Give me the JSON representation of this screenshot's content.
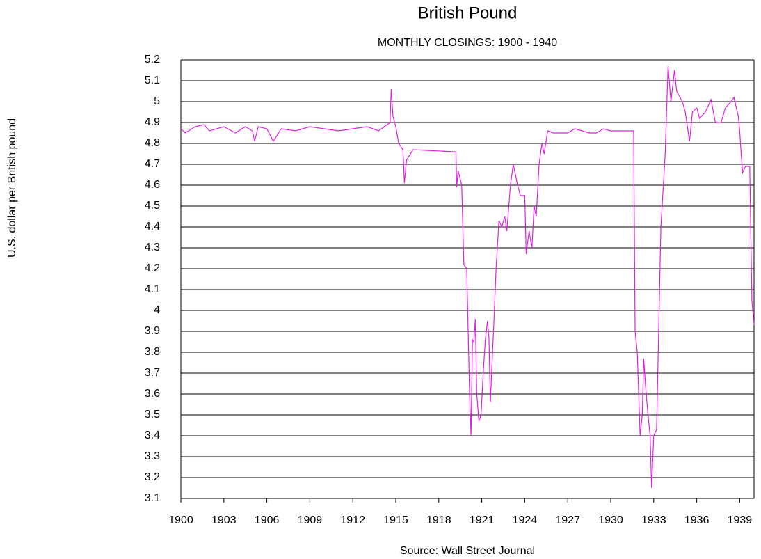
{
  "chart_data": {
    "type": "line",
    "title": "British Pound",
    "subtitle": "MONTHLY CLOSINGS: 1900 - 1940",
    "y_label": "U.S. dollar per British pound",
    "source": "Source: Wall Street Journal",
    "color": "#e020e0",
    "grid": true,
    "xlim": [
      1900,
      1940
    ],
    "xticks": [
      1900,
      1903,
      1906,
      1909,
      1912,
      1915,
      1918,
      1921,
      1924,
      1927,
      1930,
      1933,
      1936,
      1939
    ],
    "ylim": [
      3.1,
      5.2
    ],
    "yticks": [
      3.1,
      3.2,
      3.3,
      3.4,
      3.5,
      3.6,
      3.7,
      3.8,
      3.9,
      4,
      4.1,
      4.2,
      4.3,
      4.4,
      4.5,
      4.6,
      4.7,
      4.8,
      4.9,
      5,
      5.1,
      5.2
    ],
    "x": [
      1900,
      1900.3,
      1901,
      1901.6,
      1902,
      1903,
      1903.8,
      1904.5,
      1905,
      1905.15,
      1905.4,
      1906,
      1906.45,
      1907,
      1908,
      1909,
      1910,
      1911,
      1912,
      1913,
      1913.8,
      1914.6,
      1914.68,
      1914.8,
      1915,
      1915.2,
      1915.5,
      1915.6,
      1915.75,
      1916.2,
      1919,
      1919.2,
      1919.25,
      1919.35,
      1919.6,
      1919.75,
      1919.95,
      1920.15,
      1920.25,
      1920.35,
      1920.45,
      1920.55,
      1920.65,
      1920.8,
      1920.95,
      1921.1,
      1921.25,
      1921.4,
      1921.5,
      1921.6,
      1921.7,
      1921.85,
      1922,
      1922.2,
      1922.4,
      1922.6,
      1922.75,
      1923,
      1923.2,
      1923.5,
      1923.7,
      1924,
      1924.1,
      1924.3,
      1924.5,
      1924.65,
      1924.8,
      1925,
      1925.2,
      1925.35,
      1925.6,
      1926,
      1927,
      1927.5,
      1928,
      1928.5,
      1929,
      1929.5,
      1930,
      1931,
      1931.6,
      1931.7,
      1931.85,
      1932.05,
      1932.2,
      1932.3,
      1932.45,
      1932.6,
      1932.75,
      1932.85,
      1933,
      1933.2,
      1933.5,
      1933.8,
      1934,
      1934.2,
      1934.45,
      1934.6,
      1935,
      1935.2,
      1935.5,
      1935.7,
      1936,
      1936.2,
      1936.6,
      1937,
      1937.3,
      1937.7,
      1938,
      1938.4,
      1938.6,
      1938.9,
      1939,
      1939.1,
      1939.2,
      1939.4,
      1939.7,
      1939.85,
      1940
    ],
    "values": [
      4.87,
      4.85,
      4.88,
      4.89,
      4.86,
      4.88,
      4.85,
      4.88,
      4.86,
      4.81,
      4.88,
      4.87,
      4.81,
      4.87,
      4.86,
      4.88,
      4.87,
      4.86,
      4.87,
      4.88,
      4.86,
      4.9,
      5.06,
      4.93,
      4.88,
      4.8,
      4.77,
      4.61,
      4.72,
      4.77,
      4.76,
      4.76,
      4.59,
      4.67,
      4.6,
      4.22,
      4.2,
      3.6,
      3.4,
      3.86,
      3.85,
      3.96,
      3.6,
      3.47,
      3.5,
      3.7,
      3.86,
      3.95,
      3.87,
      3.56,
      3.72,
      3.95,
      4.2,
      4.43,
      4.4,
      4.45,
      4.38,
      4.6,
      4.7,
      4.6,
      4.55,
      4.55,
      4.27,
      4.38,
      4.3,
      4.5,
      4.45,
      4.7,
      4.8,
      4.75,
      4.86,
      4.85,
      4.85,
      4.87,
      4.86,
      4.85,
      4.85,
      4.87,
      4.86,
      4.86,
      4.86,
      3.9,
      3.8,
      3.4,
      3.5,
      3.77,
      3.62,
      3.5,
      3.4,
      3.15,
      3.4,
      3.43,
      4.4,
      4.75,
      5.17,
      5.0,
      5.15,
      5.05,
      5.0,
      4.95,
      4.81,
      4.95,
      4.97,
      4.92,
      4.95,
      5.01,
      4.9,
      4.9,
      4.97,
      5.0,
      5.02,
      4.93,
      4.86,
      4.75,
      4.66,
      4.69,
      4.69,
      4.05,
      3.93
    ]
  }
}
